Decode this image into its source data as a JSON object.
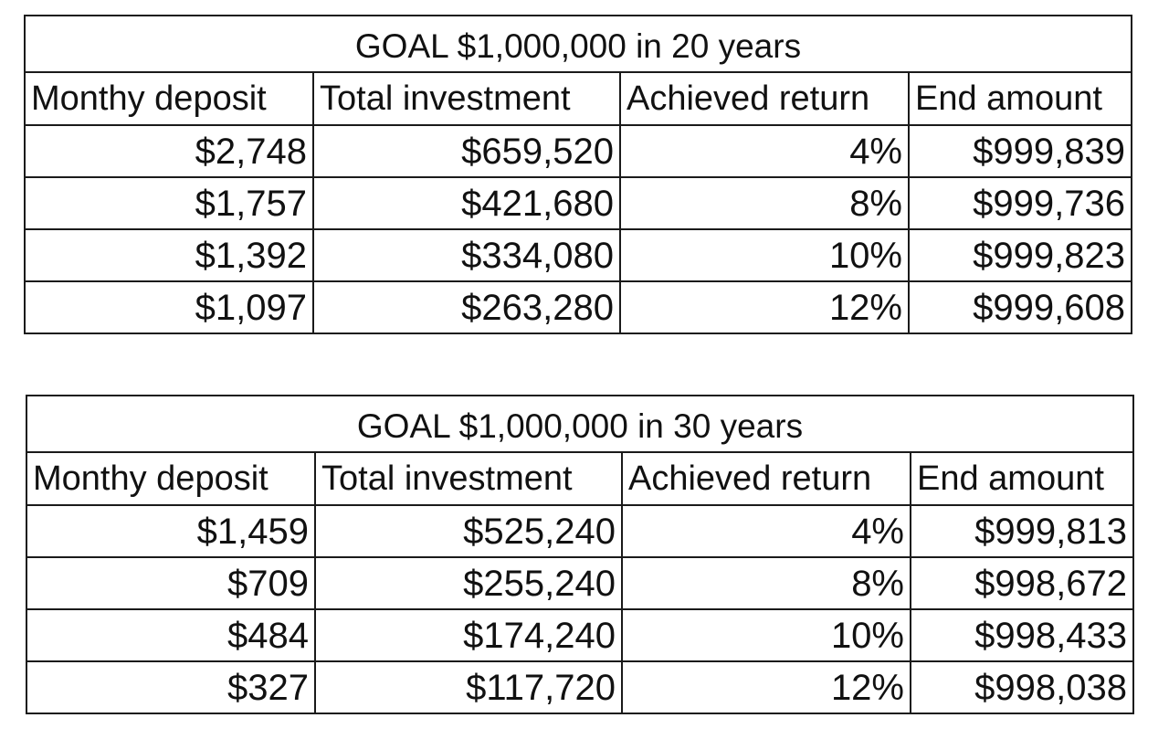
{
  "tables": [
    {
      "title": "GOAL $1,000,000 in 20 years",
      "headers": [
        "Monthy deposit",
        "Total investment",
        "Achieved return",
        "End amount"
      ],
      "rows": [
        [
          "$2,748",
          "$659,520",
          "4%",
          "$999,839"
        ],
        [
          "$1,757",
          "$421,680",
          "8%",
          "$999,736"
        ],
        [
          "$1,392",
          "$334,080",
          "10%",
          "$999,823"
        ],
        [
          "$1,097",
          "$263,280",
          "12%",
          "$999,608"
        ]
      ]
    },
    {
      "title": "GOAL $1,000,000 in 30 years",
      "headers": [
        "Monthy deposit",
        "Total investment",
        "Achieved return",
        "End amount"
      ],
      "rows": [
        [
          "$1,459",
          "$525,240",
          "4%",
          "$999,813"
        ],
        [
          "$709",
          "$255,240",
          "8%",
          "$998,672"
        ],
        [
          "$484",
          "$174,240",
          "10%",
          "$998,433"
        ],
        [
          "$327",
          "$117,720",
          "12%",
          "$998,038"
        ]
      ]
    }
  ]
}
